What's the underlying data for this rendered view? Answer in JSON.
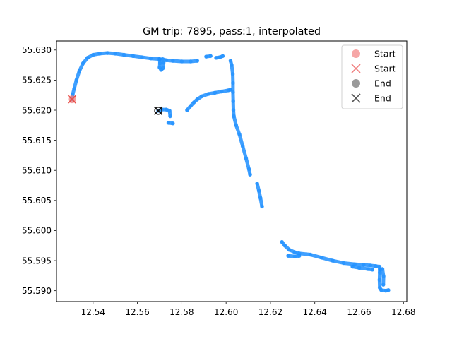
{
  "chart_data": {
    "type": "scatter",
    "title": "GM trip: 7895, pass:1, interpolated",
    "xlabel": "",
    "ylabel": "",
    "xlim": [
      12.5235,
      12.6815
    ],
    "ylim": [
      55.5882,
      55.6315
    ],
    "xticks": [
      "12.54",
      "12.56",
      "12.58",
      "12.60",
      "12.62",
      "12.64",
      "12.66",
      "12.68"
    ],
    "yticks": [
      "55.590",
      "55.595",
      "55.600",
      "55.605",
      "55.610",
      "55.615",
      "55.620",
      "55.625",
      "55.630"
    ],
    "xtick_values": [
      12.54,
      12.56,
      12.58,
      12.6,
      12.62,
      12.64,
      12.66,
      12.68
    ],
    "ytick_values": [
      55.59,
      55.595,
      55.6,
      55.605,
      55.61,
      55.615,
      55.62,
      55.625,
      55.63
    ],
    "grid": false,
    "legend_position": "top-right",
    "colors": {
      "track": "#1e8fff",
      "start_marker": "#f08080",
      "end_marker": "#555555"
    },
    "legend": [
      {
        "label": "Start",
        "marker": "circle",
        "color": "#f6a6a6"
      },
      {
        "label": "Start",
        "marker": "x",
        "color": "#f08080"
      },
      {
        "label": "End",
        "marker": "circle",
        "color": "#9a9a9a"
      },
      {
        "label": "End",
        "marker": "x",
        "color": "#555555"
      }
    ],
    "start_point": {
      "x": 12.5305,
      "y": 55.6218
    },
    "end_point": {
      "x": 12.5694,
      "y": 55.6199
    },
    "segments": [
      [
        [
          12.5305,
          55.6218
        ],
        [
          12.5308,
          55.6226
        ],
        [
          12.5315,
          55.6236
        ],
        [
          12.5325,
          55.625
        ],
        [
          12.5338,
          55.6265
        ],
        [
          12.5355,
          55.6278
        ],
        [
          12.5375,
          55.6287
        ],
        [
          12.54,
          55.6292
        ],
        [
          12.543,
          55.6294
        ],
        [
          12.5465,
          55.6295
        ],
        [
          12.55,
          55.6294
        ],
        [
          12.554,
          55.6292
        ],
        [
          12.558,
          55.629
        ],
        [
          12.562,
          55.6288
        ],
        [
          12.566,
          55.6286
        ],
        [
          12.57,
          55.6285
        ]
      ],
      [
        [
          12.57,
          55.6285
        ],
        [
          12.5702,
          55.6278
        ],
        [
          12.57,
          55.6271
        ],
        [
          12.5707,
          55.6267
        ],
        [
          12.5716,
          55.627
        ],
        [
          12.5718,
          55.6279
        ],
        [
          12.5713,
          55.6285
        ],
        [
          12.573,
          55.6283
        ],
        [
          12.576,
          55.6282
        ],
        [
          12.58,
          55.6281
        ],
        [
          12.584,
          55.6281
        ],
        [
          12.587,
          55.6282
        ]
      ],
      [
        [
          12.591,
          55.6289
        ],
        [
          12.593,
          55.629
        ]
      ],
      [
        [
          12.5955,
          55.6287
        ],
        [
          12.5972,
          55.6288
        ],
        [
          12.5985,
          55.629
        ]
      ],
      [
        [
          12.602,
          55.6282
        ],
        [
          12.6025,
          55.6275
        ],
        [
          12.603,
          55.626
        ],
        [
          12.6031,
          55.6245
        ],
        [
          12.6031,
          55.623
        ],
        [
          12.6032,
          55.6215
        ],
        [
          12.6033,
          55.62
        ],
        [
          12.6035,
          55.619
        ],
        [
          12.6045,
          55.6175
        ],
        [
          12.606,
          55.616
        ],
        [
          12.6075,
          55.614
        ],
        [
          12.609,
          55.612
        ],
        [
          12.6103,
          55.6102
        ],
        [
          12.6108,
          55.6093
        ]
      ],
      [
        [
          12.614,
          55.6078
        ],
        [
          12.6148,
          55.6066
        ],
        [
          12.6155,
          55.6054
        ],
        [
          12.6162,
          55.604
        ]
      ],
      [
        [
          12.6252,
          55.5981
        ],
        [
          12.6265,
          55.5975
        ],
        [
          12.6285,
          55.5968
        ],
        [
          12.631,
          55.5964
        ],
        [
          12.633,
          55.5962
        ],
        [
          12.638,
          55.596
        ],
        [
          12.643,
          55.5955
        ],
        [
          12.648,
          55.595
        ],
        [
          12.653,
          55.5946
        ],
        [
          12.658,
          55.5944
        ],
        [
          12.662,
          55.5943
        ],
        [
          12.665,
          55.5942
        ],
        [
          12.6675,
          55.5941
        ],
        [
          12.6692,
          55.594
        ],
        [
          12.6693,
          55.593
        ],
        [
          12.6692,
          55.5918
        ],
        [
          12.6693,
          55.5905
        ],
        [
          12.67,
          55.5901
        ],
        [
          12.672,
          55.59
        ],
        [
          12.6732,
          55.5901
        ]
      ],
      [
        [
          12.6695,
          55.5935
        ],
        [
          12.6705,
          55.5936
        ],
        [
          12.671,
          55.5924
        ],
        [
          12.6709,
          55.591
        ]
      ],
      [
        [
          12.628,
          55.5958
        ],
        [
          12.631,
          55.5957
        ],
        [
          12.633,
          55.5958
        ]
      ],
      [
        [
          12.657,
          55.594
        ],
        [
          12.66,
          55.5938
        ],
        [
          12.664,
          55.5936
        ],
        [
          12.666,
          55.5935
        ]
      ],
      [
        [
          12.5824,
          55.62
        ],
        [
          12.584,
          55.6207
        ],
        [
          12.5855,
          55.6213
        ],
        [
          12.587,
          55.6218
        ],
        [
          12.589,
          55.6223
        ],
        [
          12.592,
          55.6227
        ],
        [
          12.595,
          55.6229
        ],
        [
          12.598,
          55.6231
        ],
        [
          12.601,
          55.6233
        ],
        [
          12.602,
          55.6234
        ]
      ],
      [
        [
          12.5694,
          55.6199
        ],
        [
          12.571,
          55.6201
        ],
        [
          12.573,
          55.6201
        ],
        [
          12.5745,
          55.6199
        ],
        [
          12.5748,
          55.619
        ]
      ],
      [
        [
          12.574,
          55.6179
        ],
        [
          12.576,
          55.6178
        ]
      ]
    ]
  }
}
